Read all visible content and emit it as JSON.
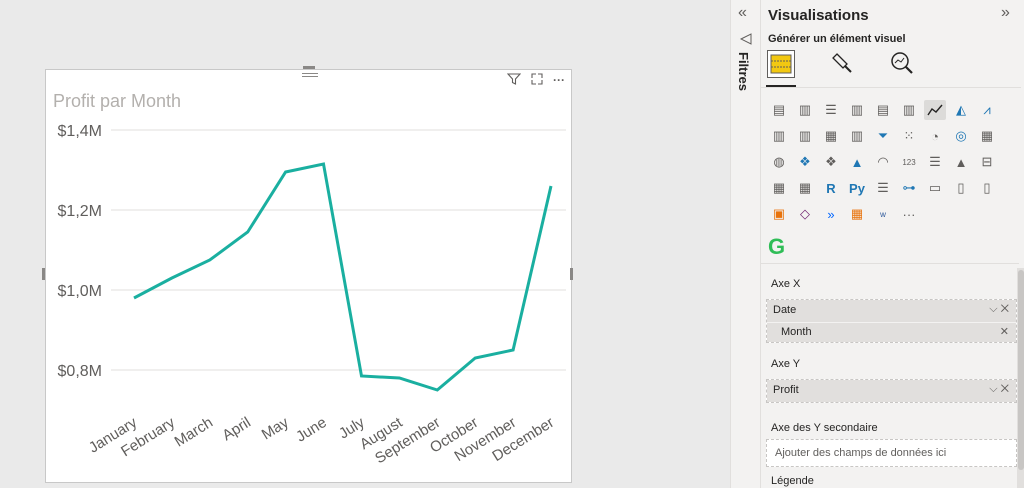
{
  "chart": {
    "title": "Profit par Month",
    "icons": [
      "filter-icon",
      "focus-mode-icon",
      "more-options-icon"
    ]
  },
  "chart_data": {
    "type": "line",
    "title": "Profit par Month",
    "xlabel": "",
    "ylabel": "",
    "categories": [
      "January",
      "February",
      "March",
      "April",
      "May",
      "June",
      "July",
      "August",
      "September",
      "October",
      "November",
      "December"
    ],
    "values": [
      0.98,
      1.03,
      1.075,
      1.145,
      1.295,
      1.315,
      0.785,
      0.78,
      0.75,
      0.83,
      0.85,
      1.26
    ],
    "y_unit": "M$",
    "ylim": [
      0.7,
      1.45
    ],
    "yticks": [
      0.8,
      1.0,
      1.2,
      1.4
    ],
    "ytick_labels": [
      "$0,8M",
      "$1,0M",
      "$1,2M",
      "$1,4M"
    ],
    "grid": true,
    "color": "#1aafa0"
  },
  "filters": {
    "label": "Filtres"
  },
  "viz_pane": {
    "title": "Visualisations",
    "build_label": "Générer un élément visuel",
    "x_axis": {
      "label": "Axe X",
      "field": "Date",
      "subfield": "Month"
    },
    "y_axis": {
      "label": "Axe Y",
      "field": "Profit"
    },
    "secondary_y": {
      "label": "Axe des Y secondaire",
      "placeholder": "Ajouter des champs de données ici"
    },
    "legend": {
      "label": "Légende"
    },
    "more_label": "···",
    "r_label": "R",
    "py_label": "Py"
  }
}
